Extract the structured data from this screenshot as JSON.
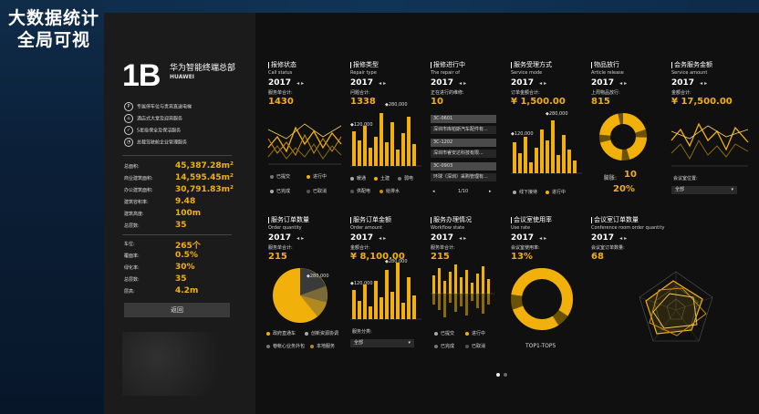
{
  "slide": {
    "title_line1": "大数据统计",
    "title_line2": "全局可视"
  },
  "side": {
    "logo": "1B",
    "brand_cn": "华为智能终端总部",
    "brand_en": "HUAWEI",
    "services": [
      {
        "icon": "parking-icon",
        "glyph": "P",
        "label": "专属停车位与贵宾直送电梯"
      },
      {
        "icon": "hotel-icon",
        "glyph": "⌂",
        "label": "酒店式大堂及迎宾服务"
      },
      {
        "icon": "badge-icon",
        "glyph": "✓",
        "label": "5星级保全及保洁服务"
      },
      {
        "icon": "gauge-icon",
        "glyph": "◔",
        "label": "总裁驾驶舱企业管理服务"
      }
    ],
    "stats1": [
      {
        "label": "总面积:",
        "value": "45,387.28m²"
      },
      {
        "label": "商业建筑面积:",
        "value": "14,595.45m²"
      },
      {
        "label": "办公建筑面积:",
        "value": "30,791.83m²"
      },
      {
        "label": "建筑容积率:",
        "value": "9.48"
      },
      {
        "label": "建筑高度:",
        "value": "100m"
      },
      {
        "label": "总层数:",
        "value": "35"
      }
    ],
    "stats2": [
      {
        "label": "车位:",
        "value": "265个"
      },
      {
        "label": "覆面率:",
        "value": "0.5%"
      },
      {
        "label": "绿化率:",
        "value": "30%"
      },
      {
        "label": "总层数:",
        "value": "35"
      },
      {
        "label": "层高:",
        "value": "4.2m"
      }
    ],
    "back_label": "返回"
  },
  "panels": {
    "p1": {
      "title": "报修状态",
      "sub": "Call status",
      "year": "2017",
      "klabel": "服务单合计:",
      "kval": "1430",
      "legend": [
        "已提交",
        "进行中",
        "已完成",
        "已取消"
      ]
    },
    "p2": {
      "title": "报修类型",
      "sub": "Repair type",
      "year": "2017",
      "klabel": "问题合计:",
      "kval": "1338",
      "tip1": "120,000",
      "tip2": "280,000",
      "legend": [
        "暖通",
        "土建",
        "弱电",
        "供配电",
        "给排水"
      ]
    },
    "p3": {
      "title": "报修进行中",
      "sub": "The repair of",
      "year": "2017",
      "klabel": "正在进行的维修:",
      "kval": "10",
      "rows": [
        "3C-0601",
        "深圳市库柏斯汽车配件有...",
        "3C-1202",
        "深圳市睿安达科技有限...",
        "3C-0903",
        "环球（深圳）采购管理有..."
      ],
      "page": "1/10"
    },
    "p4": {
      "title": "服务受理方式",
      "sub": "Service mode",
      "year": "2017",
      "klabel": "订单金额合计:",
      "kval": "¥ 1,500.00",
      "tip1": "120,000",
      "tip2": "280,000",
      "legend": [
        "线下接待",
        "进行中"
      ]
    },
    "p5": {
      "title": "物品放行",
      "sub": "Article release",
      "year": "2017",
      "klabel": "上周物品放行:",
      "kval": "815",
      "ring_label": "膨胀:",
      "ring_count": "10",
      "ring_pct": "20%"
    },
    "p6": {
      "title": "会务服务金额",
      "sub": "Service amount",
      "year": "2017",
      "klabel": "金额合计:",
      "kval": "¥ 17,500.00",
      "loc_label": "会议室位置:",
      "dropdown": "全部"
    },
    "p7": {
      "title": "服务订单数量",
      "sub": "Order quantity",
      "year": "2017",
      "klabel": "服务单合计:",
      "kval": "215",
      "tip": "280,000",
      "legend": [
        "政府直通车",
        "创新资源协调",
        "巷帐心业务外包",
        "本地服务"
      ]
    },
    "p8": {
      "title": "服务订单金额",
      "sub": "Order amount",
      "year": "2017",
      "klabel": "金额合计:",
      "kval": "¥ 8,100.00",
      "tip1": "120,000",
      "tip2": "280,000",
      "cat_label": "服务分类:",
      "dropdown": "全部"
    },
    "p9": {
      "title": "服务办理情况",
      "sub": "Workflow state",
      "year": "2017",
      "klabel": "服务单合计:",
      "kval": "215",
      "legend": [
        "已提交",
        "进行中",
        "已完成",
        "已取消"
      ]
    },
    "p10": {
      "title": "会议室使用率",
      "sub": "Use rate",
      "year": "2017",
      "klabel": "会议室使用率:",
      "kval": "13%",
      "caption": "TOP1-TOP5"
    },
    "p11": {
      "title": "会议室订单数量",
      "sub": "Conference room order quantity",
      "year": "2017",
      "klabel": "会议室订单数量:",
      "kval": "68"
    }
  },
  "colors": {
    "accent": "#f2b10a",
    "panel_bg": "#101010",
    "sidebar_bg": "#1b1b1b"
  }
}
